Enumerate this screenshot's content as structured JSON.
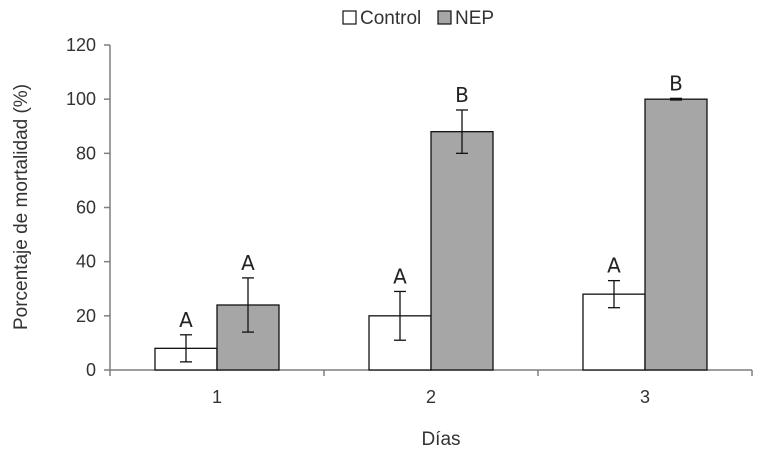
{
  "chart_data": {
    "type": "bar",
    "title": "",
    "xlabel": "Días",
    "ylabel": "Porcentaje de mortalidad (%)",
    "ylim": [
      0,
      120
    ],
    "yticks": [
      0,
      20,
      40,
      60,
      80,
      100,
      120
    ],
    "categories": [
      "1",
      "2",
      "3"
    ],
    "legend_position": "top-center",
    "grid": false,
    "series": [
      {
        "name": "Control",
        "color": "#ffffff",
        "values": [
          8,
          20,
          28
        ],
        "errors": [
          5,
          9,
          5
        ],
        "labels": [
          "A",
          "A",
          "A"
        ]
      },
      {
        "name": "NEP",
        "color": "#a6a6a6",
        "values": [
          24,
          88,
          100
        ],
        "errors": [
          10,
          8,
          0.3
        ],
        "labels": [
          "A",
          "B",
          "B"
        ]
      }
    ]
  }
}
